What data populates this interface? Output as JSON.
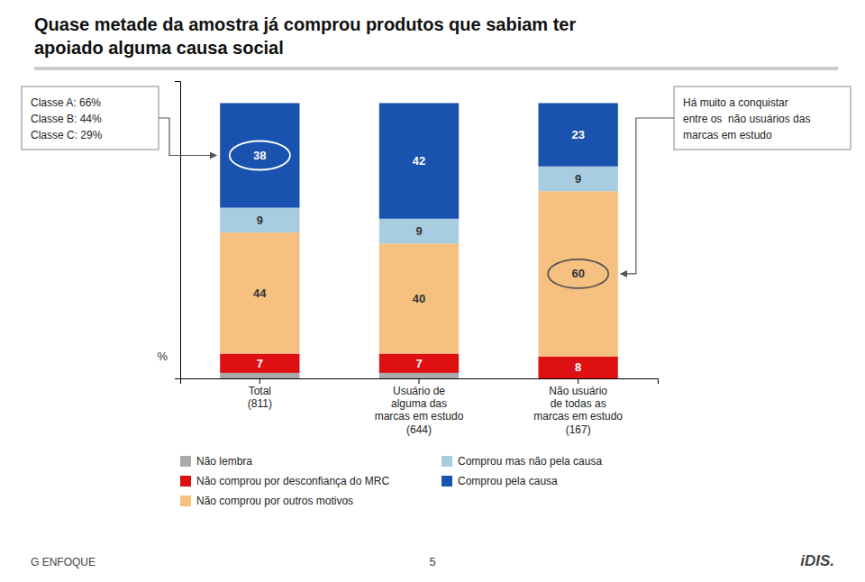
{
  "chart_data": {
    "type": "bar",
    "stacked": true,
    "title": "Quase metade da amostra já comprou produtos que sabiam ter\napoiado alguma causa social",
    "ylabel": "%",
    "categories": [
      "Total\n(811)",
      "Usuário de\nalguma das\nmarcas em estudo\n(644)",
      "Não usuário\nde todas as\nmarcas em estudo\n(167)"
    ],
    "series": [
      {
        "name": "Não lembra",
        "color": "#aaaaaa",
        "values": [
          2,
          2,
          0
        ],
        "data_labels": false
      },
      {
        "name": "Não comprou por desconfiança do MRC",
        "color": "#dd1111",
        "values": [
          7,
          7,
          8
        ],
        "data_labels": true
      },
      {
        "name": "Não comprou por outros motivos",
        "color": "#f5c080",
        "values": [
          44,
          40,
          60
        ],
        "data_labels": true
      },
      {
        "name": "Comprou mas não pela causa",
        "color": "#a8cce0",
        "values": [
          9,
          9,
          9
        ],
        "data_labels": true
      },
      {
        "name": "Comprou pela causa",
        "color": "#1a52b0",
        "values": [
          38,
          42,
          23
        ],
        "data_labels": true
      }
    ],
    "ylim": [
      0,
      108
    ],
    "tick_labels": "x",
    "grid": false,
    "legend": "bottom",
    "data_labels": true,
    "annotations": [
      "Classe A: 66%\nClasse B: 44%\nClasse C: 29%",
      "Há muito a conquistar\nentre os  não usuários das\nmarcas em estudo",
      "5",
      "G ENFOQUE",
      "iDIS."
    ]
  }
}
